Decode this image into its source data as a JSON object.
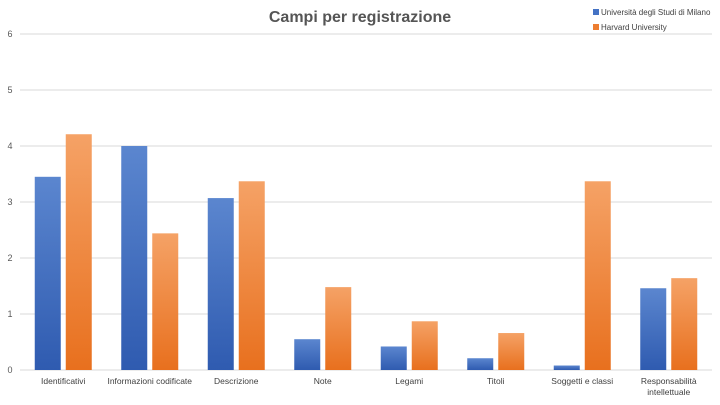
{
  "chart_data": {
    "type": "bar",
    "title": "Campi per registrazione",
    "categories": [
      [
        "Identificativi"
      ],
      [
        "Informazioni codificate"
      ],
      [
        "Descrizione"
      ],
      [
        "Note"
      ],
      [
        "Legami"
      ],
      [
        "Titoli"
      ],
      [
        "Soggetti e classi"
      ],
      [
        "Responsabilità",
        "intellettuale"
      ]
    ],
    "series": [
      {
        "name": "Università degli Studi di Milano",
        "color": "#4472C4",
        "values": [
          3.45,
          4.0,
          3.07,
          0.55,
          0.42,
          0.21,
          0.08,
          1.46
        ]
      },
      {
        "name": "Harvard University",
        "color": "#ED7D31",
        "values": [
          4.21,
          2.44,
          3.37,
          1.48,
          0.87,
          0.66,
          3.37,
          1.64
        ]
      }
    ],
    "ylim": [
      0,
      6
    ],
    "yticks": [
      0,
      1,
      2,
      3,
      4,
      5,
      6
    ],
    "grid": true,
    "legend_position": "top-right"
  }
}
